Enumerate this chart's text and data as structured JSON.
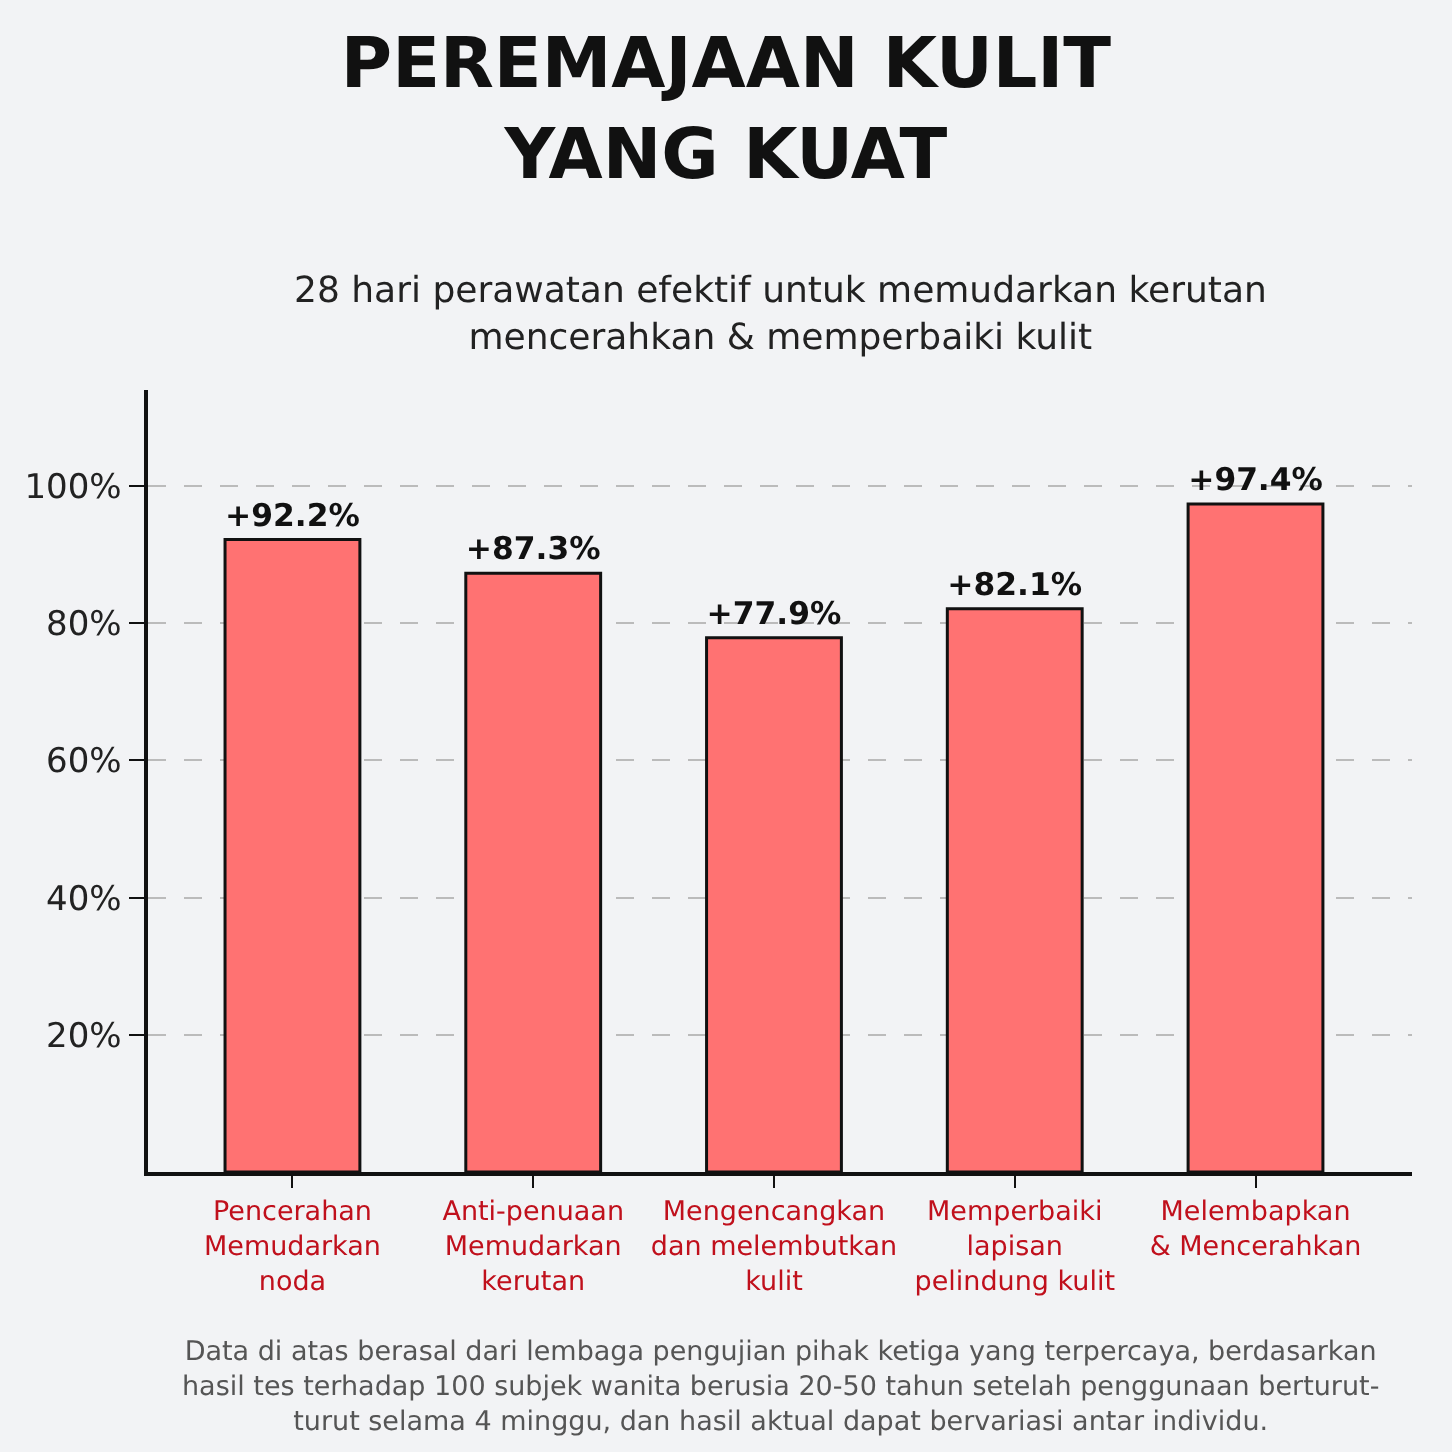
{
  "chart_data": {
    "type": "bar",
    "title": "PEREMAJAAN KULIT\nYANG KUAT",
    "subtitle": "28 hari perawatan efektif untuk memudarkan kerutan\nmencerahkan & memperbaiki kulit",
    "categories": [
      "Pencerahan\nMemudarkan\nnoda",
      "Anti-penuaan\nMemudarkan\nkerutan",
      "Mengencangkan\ndan melembutkan\nkulit",
      "Memperbaiki\nlapisan\npelindung kulit",
      "Melembapkan\n& Mencerahkan"
    ],
    "values": [
      92.2,
      87.3,
      77.9,
      82.1,
      97.4
    ],
    "value_labels": [
      "+92.2%",
      "+87.3%",
      "+77.9%",
      "+82.1%",
      "+97.4%"
    ],
    "color": "#ff7272",
    "ylim": [
      0,
      114
    ],
    "yticks": [
      {
        "value": 20,
        "label": "20%"
      },
      {
        "value": 40,
        "label": "40%"
      },
      {
        "value": 60,
        "label": "60%"
      },
      {
        "value": 80,
        "label": "80%"
      },
      {
        "value": 100,
        "label": "100%"
      }
    ],
    "grid": "y",
    "annotations": [
      "Data di atas berasal dari lembaga pengujian pihak ketiga yang terpercaya, berdasarkan\nhasil tes terhadap 100 subjek wanita berusia 20-50 tahun setelah penggunaan berturut-\nturut selama 4 minggu, dan hasil aktual dapat bervariasi antar individu."
    ]
  }
}
